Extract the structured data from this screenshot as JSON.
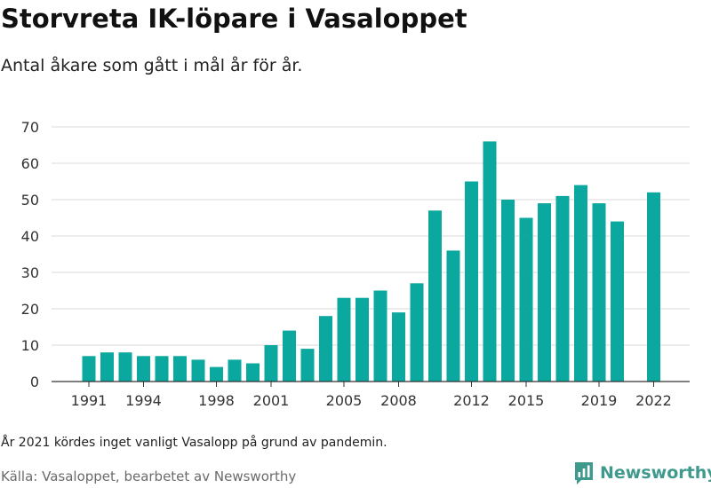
{
  "title": "Storvreta IK-löpare i Vasaloppet",
  "subtitle": "Antal åkare som gått i mål år för år.",
  "note": "År 2021 kördes inget vanligt Vasalopp på grund av pandemin.",
  "source": "Källa: Vasaloppet, bearbetet av Newsworthy",
  "brand": {
    "name": "Newsworthy",
    "logo_icon": "newsworthy-chart-logo-icon"
  },
  "colors": {
    "bar": "#0aa89e",
    "grid": "#d9d9d9",
    "axis": "#333333",
    "brand": "#3f9a8d"
  },
  "chart_data": {
    "type": "bar",
    "categories": [
      1991,
      1992,
      1993,
      1994,
      1995,
      1996,
      1997,
      1998,
      1999,
      2000,
      2001,
      2002,
      2003,
      2004,
      2005,
      2006,
      2007,
      2008,
      2009,
      2010,
      2011,
      2012,
      2013,
      2014,
      2015,
      2016,
      2017,
      2018,
      2019,
      2020,
      2021,
      2022
    ],
    "values": [
      7,
      8,
      8,
      7,
      7,
      7,
      6,
      4,
      6,
      5,
      10,
      14,
      9,
      18,
      23,
      23,
      25,
      19,
      27,
      47,
      36,
      55,
      66,
      50,
      45,
      49,
      51,
      54,
      49,
      44,
      null,
      52
    ],
    "xticks": [
      "1991",
      "1994",
      "1998",
      "2001",
      "2005",
      "2008",
      "2012",
      "2015",
      "2019",
      "2022"
    ],
    "yticks": [
      0,
      10,
      20,
      30,
      40,
      50,
      60,
      70
    ],
    "ylim": [
      0,
      70
    ],
    "grid": true,
    "legend": "none"
  }
}
